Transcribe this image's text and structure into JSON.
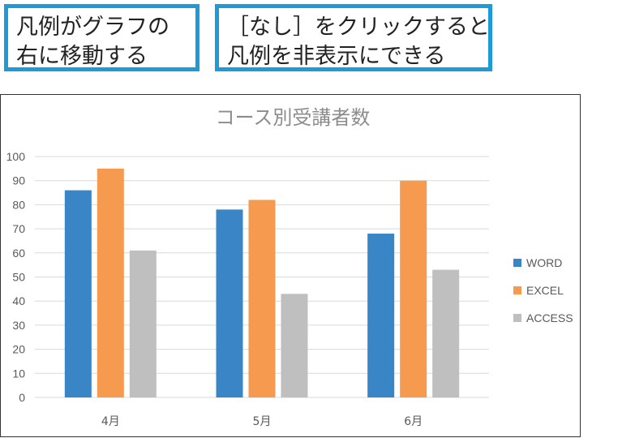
{
  "callouts": {
    "left": {
      "line1": "凡例がグラフの",
      "line2": "右に移動する"
    },
    "right": {
      "line1": "［なし］をクリックすると",
      "line2": "凡例を非表示にできる"
    }
  },
  "colors": {
    "callout_border": "#1e9bd7",
    "word": "#3a85c6",
    "excel": "#f59a4f",
    "access": "#bfbfbf",
    "grid": "#d9d9d9"
  },
  "chart_data": {
    "type": "bar",
    "title": "コース別受講者数",
    "categories": [
      "4月",
      "5月",
      "6月"
    ],
    "series": [
      {
        "name": "WORD",
        "values": [
          86,
          78,
          68
        ],
        "color": "#3a85c6"
      },
      {
        "name": "EXCEL",
        "values": [
          95,
          82,
          90
        ],
        "color": "#f59a4f"
      },
      {
        "name": "ACCESS",
        "values": [
          61,
          43,
          53
        ],
        "color": "#bfbfbf"
      }
    ],
    "ylim": [
      0,
      100
    ],
    "yticks": [
      "0",
      "10",
      "20",
      "30",
      "40",
      "50",
      "60",
      "70",
      "80",
      "90",
      "100"
    ],
    "grid": true,
    "legend_position": "right",
    "xlabel": "",
    "ylabel": ""
  }
}
